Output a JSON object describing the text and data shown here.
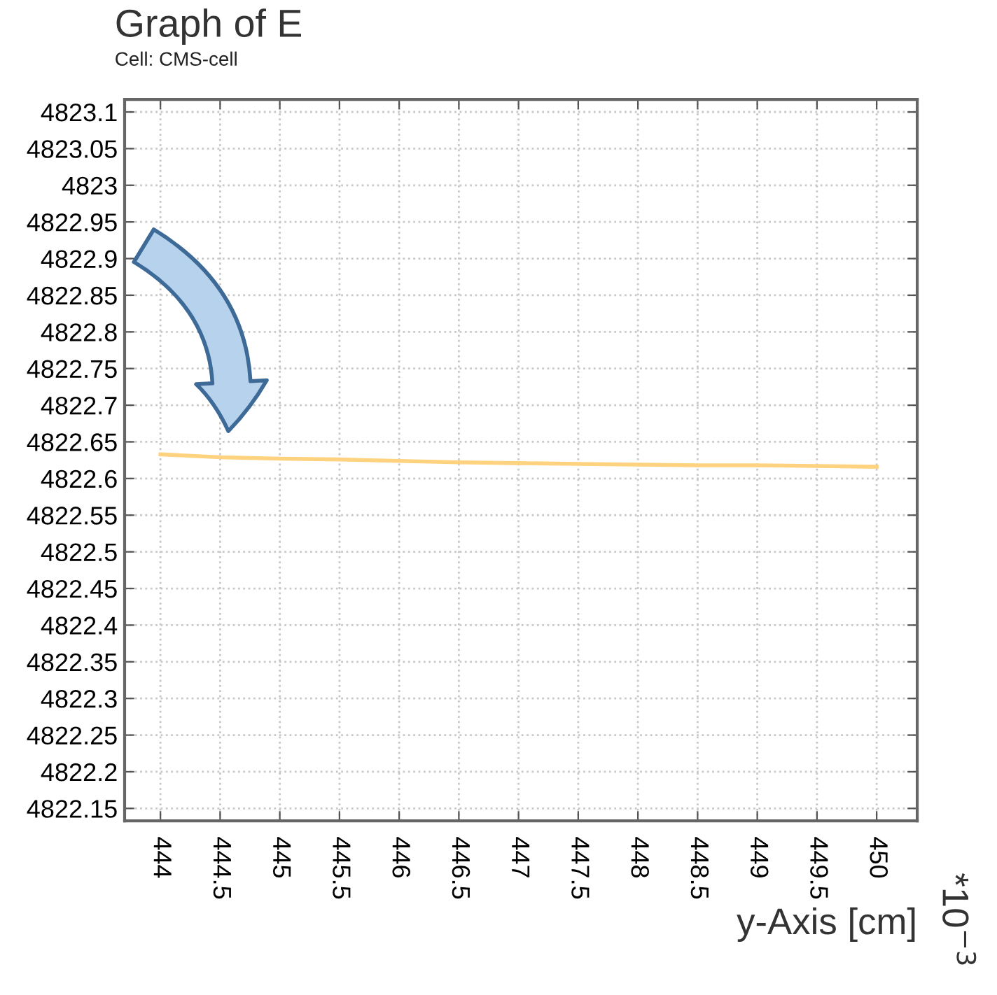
{
  "chart_data": {
    "type": "line",
    "title": "Graph of E",
    "subtitle": "Cell: CMS-cell",
    "xlabel": "y-Axis [cm]",
    "annotations": [
      "*10$^{−3}$"
    ],
    "x": [
      444,
      444.5,
      445,
      445.5,
      446,
      446.5,
      447,
      447.5,
      448,
      448.5,
      449,
      449.5,
      450
    ],
    "series": [
      {
        "color": "#ffd27f",
        "values": [
          4822.633,
          4822.629,
          4822.627,
          4822.626,
          4822.624,
          4822.622,
          4822.621,
          4822.62,
          4822.619,
          4822.618,
          4822.618,
          4822.617,
          4822.616
        ]
      }
    ],
    "xlim": [
      443.7,
      450.34
    ],
    "ylim": [
      4822.133,
      4823.117
    ],
    "xticks": [
      444,
      444.5,
      445,
      445.5,
      446,
      446.5,
      447,
      447.5,
      448,
      448.5,
      449,
      449.5,
      450
    ],
    "yticks": [
      4822.15,
      4822.2,
      4822.25,
      4822.3,
      4822.35,
      4822.4,
      4822.45,
      4822.5,
      4822.55,
      4822.6,
      4822.65,
      4822.7,
      4822.75,
      4822.8,
      4822.85,
      4822.9,
      4822.95,
      4823,
      4823.05,
      4823.1
    ],
    "grid": true,
    "marker": "none",
    "line_style": "solid",
    "legend": false
  }
}
